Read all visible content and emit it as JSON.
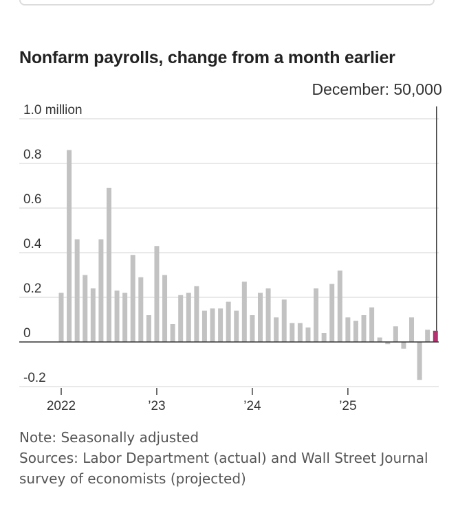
{
  "chart_data": {
    "type": "bar",
    "title": "Nonfarm payrolls, change from a month earlier",
    "ylabel": "",
    "y_unit_label": "1.0 million",
    "ylim": [
      -0.2,
      1.0
    ],
    "yticks": [
      {
        "value": 1.0,
        "label": "1.0 million"
      },
      {
        "value": 0.8,
        "label": "0.8"
      },
      {
        "value": 0.6,
        "label": "0.6"
      },
      {
        "value": 0.4,
        "label": "0.4"
      },
      {
        "value": 0.2,
        "label": "0.2"
      },
      {
        "value": 0,
        "label": "0"
      },
      {
        "value": -0.2,
        "label": "-0.2"
      }
    ],
    "xticks": [
      {
        "index": 0,
        "label": "2022"
      },
      {
        "index": 12,
        "label": "’23"
      },
      {
        "index": 24,
        "label": "’24"
      },
      {
        "index": 36,
        "label": "’25"
      }
    ],
    "values": [
      0.22,
      0.86,
      0.46,
      0.3,
      0.24,
      0.46,
      0.69,
      0.23,
      0.22,
      0.39,
      0.29,
      0.12,
      0.43,
      0.3,
      0.08,
      0.21,
      0.22,
      0.25,
      0.14,
      0.15,
      0.15,
      0.18,
      0.14,
      0.27,
      0.12,
      0.22,
      0.24,
      0.11,
      0.19,
      0.085,
      0.085,
      0.065,
      0.24,
      0.04,
      0.26,
      0.32,
      0.11,
      0.095,
      0.12,
      0.155,
      0.02,
      -0.01,
      0.07,
      -0.03,
      0.11,
      -0.17,
      0.055,
      0.05
    ],
    "highlight_index": 47,
    "annotation": "December: 50,000",
    "colors": {
      "bar": "#c2c2c2",
      "highlight": "#b5306f",
      "grid": "#dcdcdc",
      "axis": "#333333",
      "annotation_line": "#333333"
    },
    "grid": true
  },
  "notes": {
    "note": "Note: Seasonally adjusted",
    "sources": "Sources: Labor Department (actual) and Wall Street Journal survey of economists (projected)"
  }
}
